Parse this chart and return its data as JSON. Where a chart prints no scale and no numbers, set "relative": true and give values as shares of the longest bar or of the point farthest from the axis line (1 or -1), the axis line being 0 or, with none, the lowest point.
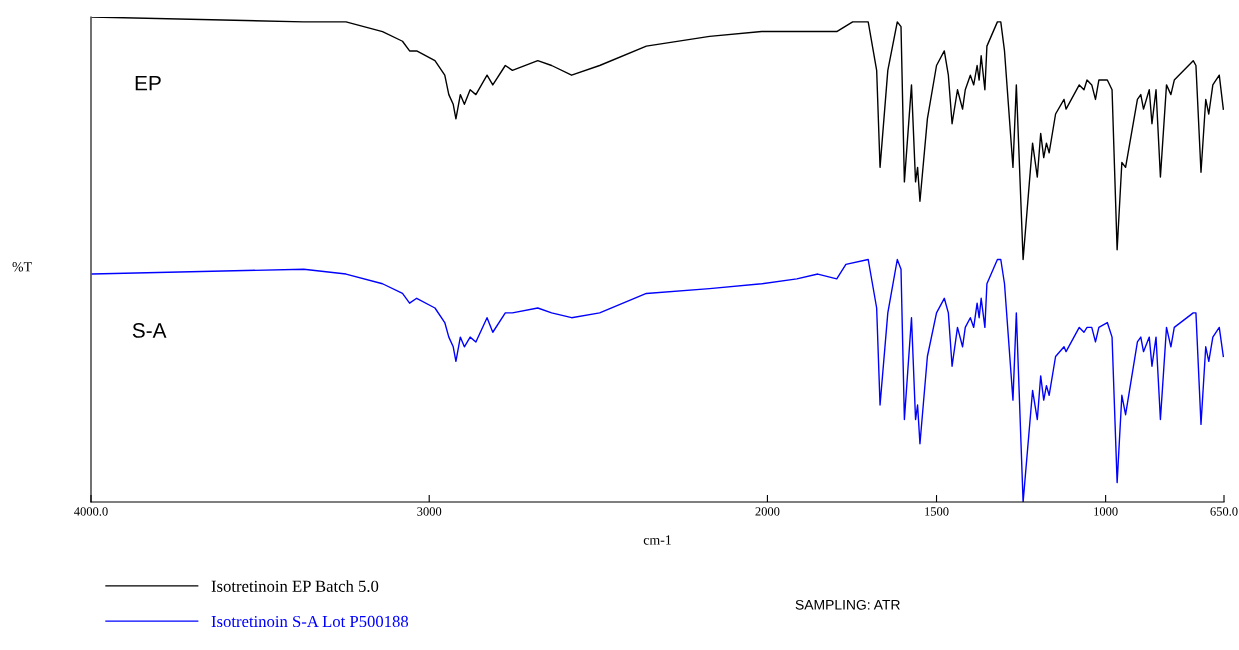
{
  "chart_data": {
    "type": "line",
    "relative": true,
    "xlabel": "cm-1",
    "ylabel": "%T",
    "xlim": [
      4000,
      650
    ],
    "xticks": [
      {
        "value": 4000,
        "label": "4000.0"
      },
      3000,
      2000,
      1500,
      1000,
      {
        "value": 650,
        "label": "650.0"
      }
    ],
    "tick_labels": "x",
    "grid": false,
    "legend": "bottom left",
    "marker": "none",
    "line_style": "solid",
    "annotations": [
      "EP",
      "S-A",
      "SAMPLING: ATR"
    ],
    "series": [
      {
        "name": "Isotretinoin EP Batch 5.0",
        "color": "#000000",
        "x": [
          3996,
          3371,
          3246,
          3138,
          3079,
          3058,
          3037,
          2983,
          2954,
          2942,
          2929,
          2921,
          2908,
          2896,
          2879,
          2862,
          2829,
          2812,
          2775,
          2754,
          2679,
          2638,
          2579,
          2496,
          2358,
          2171,
          2017,
          1913,
          1822,
          1795,
          1748,
          1702,
          1677,
          1667,
          1644,
          1616,
          1605,
          1595,
          1574,
          1562,
          1556,
          1549,
          1527,
          1500,
          1477,
          1465,
          1454,
          1438,
          1423,
          1415,
          1400,
          1390,
          1380,
          1374,
          1368,
          1357,
          1351,
          1320,
          1310,
          1299,
          1274,
          1264,
          1244,
          1216,
          1202,
          1192,
          1183,
          1175,
          1167,
          1148,
          1123,
          1117,
          1078,
          1064,
          1055,
          1041,
          1030,
          1020,
          995,
          981,
          966,
          952,
          941,
          906,
          896,
          888,
          871,
          863,
          851,
          838,
          820,
          807,
          797,
          741,
          733,
          718,
          704,
          695,
          683,
          664,
          652
        ],
        "values": [
          1.0,
          0.99,
          0.99,
          0.97,
          0.95,
          0.93,
          0.93,
          0.91,
          0.88,
          0.84,
          0.82,
          0.79,
          0.84,
          0.82,
          0.85,
          0.84,
          0.88,
          0.86,
          0.9,
          0.89,
          0.91,
          0.9,
          0.88,
          0.9,
          0.94,
          0.96,
          0.97,
          0.97,
          0.97,
          0.97,
          0.99,
          0.99,
          0.89,
          0.69,
          0.89,
          0.99,
          0.98,
          0.66,
          0.86,
          0.66,
          0.69,
          0.62,
          0.79,
          0.9,
          0.93,
          0.88,
          0.78,
          0.85,
          0.81,
          0.85,
          0.88,
          0.86,
          0.9,
          0.87,
          0.92,
          0.85,
          0.94,
          0.99,
          0.99,
          0.93,
          0.69,
          0.86,
          0.5,
          0.74,
          0.67,
          0.76,
          0.71,
          0.74,
          0.72,
          0.8,
          0.83,
          0.81,
          0.86,
          0.85,
          0.87,
          0.86,
          0.83,
          0.87,
          0.87,
          0.85,
          0.52,
          0.7,
          0.69,
          0.83,
          0.84,
          0.81,
          0.85,
          0.78,
          0.85,
          0.67,
          0.86,
          0.84,
          0.87,
          0.91,
          0.9,
          0.68,
          0.83,
          0.8,
          0.86,
          0.88,
          0.81
        ]
      },
      {
        "name": "Isotretinoin S-A Lot P500188",
        "color": "#0000ff",
        "x": [
          3996,
          3371,
          3246,
          3138,
          3079,
          3058,
          3037,
          2983,
          2954,
          2942,
          2929,
          2921,
          2908,
          2896,
          2879,
          2862,
          2829,
          2812,
          2775,
          2754,
          2679,
          2638,
          2579,
          2496,
          2358,
          2171,
          2017,
          1913,
          1851,
          1795,
          1768,
          1702,
          1677,
          1667,
          1644,
          1616,
          1605,
          1595,
          1574,
          1562,
          1556,
          1549,
          1527,
          1500,
          1477,
          1465,
          1454,
          1438,
          1423,
          1415,
          1400,
          1390,
          1380,
          1374,
          1368,
          1357,
          1351,
          1320,
          1310,
          1299,
          1274,
          1264,
          1244,
          1216,
          1202,
          1192,
          1183,
          1175,
          1167,
          1148,
          1123,
          1117,
          1078,
          1064,
          1055,
          1041,
          1030,
          1020,
          995,
          981,
          966,
          952,
          941,
          906,
          896,
          888,
          871,
          863,
          851,
          838,
          820,
          807,
          797,
          741,
          733,
          718,
          704,
          695,
          683,
          664,
          652
        ],
        "values": [
          0.47,
          0.48,
          0.47,
          0.45,
          0.43,
          0.41,
          0.42,
          0.4,
          0.37,
          0.34,
          0.32,
          0.29,
          0.34,
          0.32,
          0.34,
          0.33,
          0.38,
          0.35,
          0.39,
          0.39,
          0.4,
          0.39,
          0.38,
          0.39,
          0.43,
          0.44,
          0.45,
          0.46,
          0.47,
          0.46,
          0.49,
          0.5,
          0.4,
          0.2,
          0.39,
          0.5,
          0.48,
          0.17,
          0.38,
          0.17,
          0.2,
          0.12,
          0.3,
          0.39,
          0.42,
          0.39,
          0.28,
          0.36,
          0.32,
          0.36,
          0.38,
          0.36,
          0.41,
          0.38,
          0.42,
          0.36,
          0.45,
          0.5,
          0.5,
          0.45,
          0.21,
          0.39,
          0.0,
          0.23,
          0.17,
          0.26,
          0.21,
          0.24,
          0.22,
          0.3,
          0.32,
          0.31,
          0.36,
          0.35,
          0.36,
          0.36,
          0.33,
          0.36,
          0.37,
          0.34,
          0.04,
          0.22,
          0.18,
          0.33,
          0.34,
          0.31,
          0.34,
          0.28,
          0.34,
          0.17,
          0.36,
          0.32,
          0.36,
          0.39,
          0.39,
          0.16,
          0.32,
          0.29,
          0.34,
          0.36,
          0.3
        ]
      }
    ]
  }
}
